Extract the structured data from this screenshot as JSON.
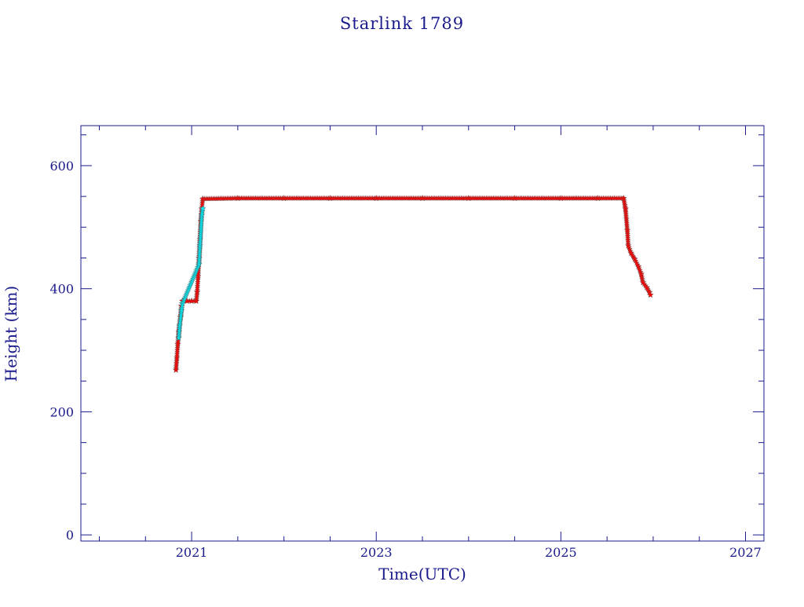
{
  "chart_data": {
    "type": "scatter",
    "title": "Starlink 1789",
    "xlabel": "Time(UTC)",
    "ylabel": "Height (km)",
    "xlim": [
      2019.8,
      2027.2
    ],
    "ylim": [
      -10,
      665
    ],
    "x_ticks": [
      {
        "value": 2021,
        "label": "2021"
      },
      {
        "value": 2023,
        "label": "2023"
      },
      {
        "value": 2025,
        "label": "2025"
      },
      {
        "value": 2027,
        "label": "2027"
      }
    ],
    "y_ticks": [
      {
        "value": 0,
        "label": "0"
      },
      {
        "value": 200,
        "label": "200"
      },
      {
        "value": 400,
        "label": "400"
      },
      {
        "value": 600,
        "label": "600"
      }
    ],
    "grid": false,
    "colors": {
      "axes": "#1a1a8c",
      "marker_main": "#ff0000",
      "marker_highlight": "#00e5ee",
      "marker_outline": "#555555"
    },
    "series": [
      {
        "marker": "star",
        "color": "#ff0000",
        "points": [
          [
            2020.83,
            268
          ],
          [
            2020.84,
            288
          ],
          [
            2020.85,
            310
          ],
          [
            2020.86,
            330
          ],
          [
            2020.88,
            354
          ],
          [
            2020.89,
            372
          ],
          [
            2020.9,
            380
          ],
          [
            2020.95,
            380
          ],
          [
            2021.0,
            380
          ],
          [
            2021.05,
            380
          ],
          [
            2021.06,
            395
          ],
          [
            2021.07,
            420
          ],
          [
            2021.08,
            450
          ],
          [
            2021.09,
            480
          ],
          [
            2021.1,
            510
          ],
          [
            2021.11,
            530
          ],
          [
            2021.12,
            546
          ],
          [
            2021.5,
            547
          ],
          [
            2022.0,
            547
          ],
          [
            2022.5,
            547
          ],
          [
            2023.0,
            547
          ],
          [
            2023.5,
            547
          ],
          [
            2024.0,
            547
          ],
          [
            2024.5,
            547
          ],
          [
            2025.0,
            547
          ],
          [
            2025.4,
            547
          ],
          [
            2025.68,
            547
          ],
          [
            2025.7,
            530
          ],
          [
            2025.72,
            495
          ],
          [
            2025.73,
            470
          ],
          [
            2025.76,
            458
          ],
          [
            2025.8,
            448
          ],
          [
            2025.84,
            436
          ],
          [
            2025.87,
            424
          ],
          [
            2025.89,
            410
          ],
          [
            2025.93,
            402
          ],
          [
            2025.96,
            394
          ],
          [
            2025.97,
            390
          ]
        ]
      },
      {
        "marker": "star",
        "color": "#00e5ee",
        "points": [
          [
            2020.86,
            320
          ],
          [
            2020.87,
            340
          ],
          [
            2020.89,
            365
          ],
          [
            2020.9,
            376
          ],
          [
            2021.08,
            440
          ],
          [
            2021.09,
            470
          ],
          [
            2021.11,
            520
          ],
          [
            2021.12,
            530
          ]
        ]
      }
    ]
  }
}
